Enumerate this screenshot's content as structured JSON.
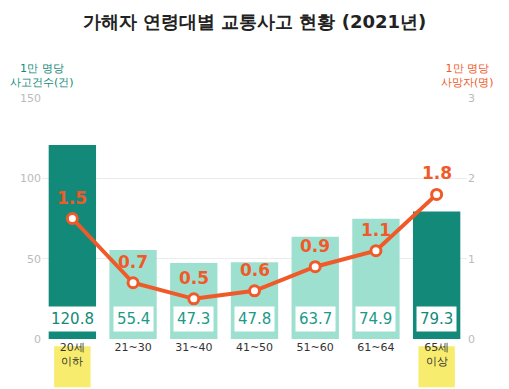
{
  "chart_data": {
    "type": "bar",
    "title": "가해자 연령대별 교통사고 현황 (2021년)",
    "y_label": "1만 명당 사고건수(건)",
    "y2_label": "1만 명당 사망자(명)",
    "categories": [
      "20세 이하",
      "21~30",
      "31~40",
      "41~50",
      "51~60",
      "61~64",
      "65세 이상"
    ],
    "values": [
      120.8,
      55.4,
      47.3,
      47.8,
      63.7,
      74.9,
      79.3
    ],
    "colors": [
      "#13897a",
      "#9ee0d0",
      "#9ee0d0",
      "#9ee0d0",
      "#9ee0d0",
      "#9ee0d0",
      "#13897a"
    ],
    "series": [
      {
        "type": "line",
        "axis": "y2",
        "color": "#f05a28",
        "marker": "circle",
        "values": [
          1.5,
          0.7,
          0.5,
          0.6,
          0.9,
          1.1,
          1.8
        ]
      }
    ],
    "ylim": [
      0,
      150
    ],
    "yticks": [
      0,
      50,
      100,
      150
    ],
    "y2lim": [
      0,
      3
    ],
    "y2ticks": [
      0,
      1,
      2,
      3
    ],
    "grid": true,
    "data_labels": true
  }
}
